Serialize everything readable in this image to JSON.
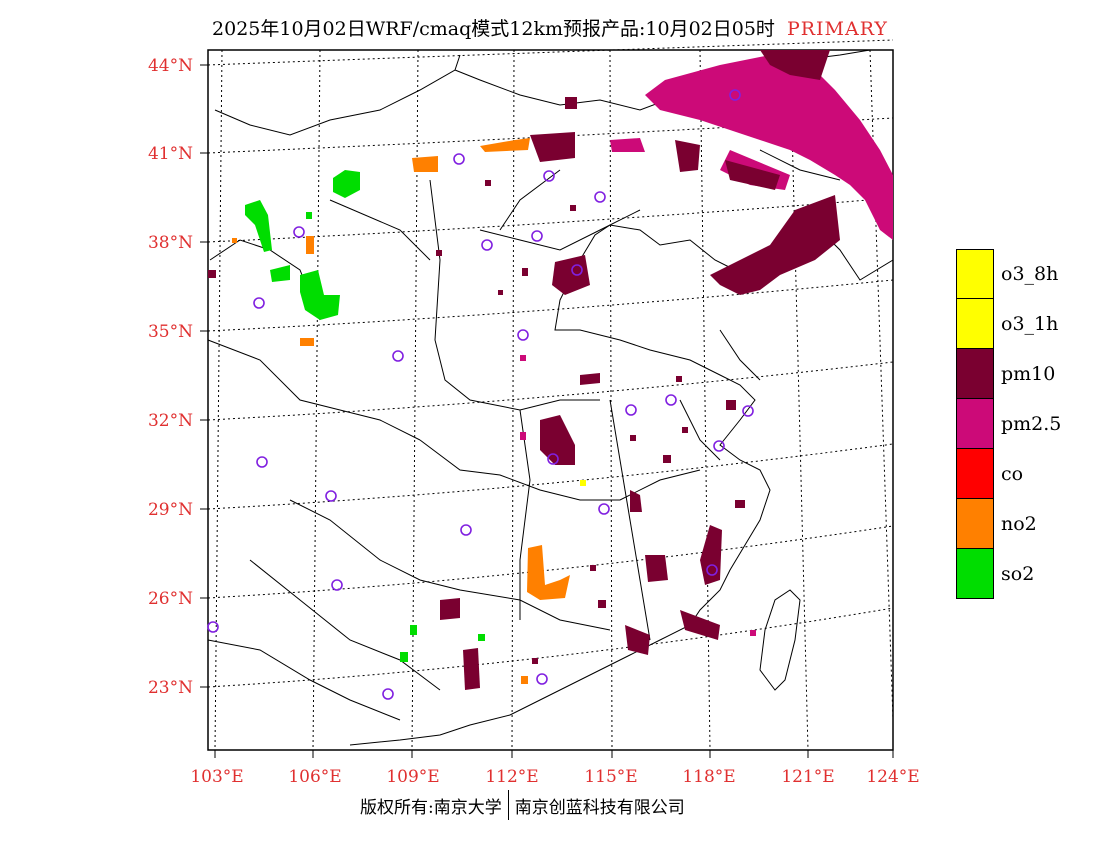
{
  "title": {
    "main": "2025年10月02日WRF/cmaq模式12km预报产品:10月02日05时",
    "tag": "PRIMARY"
  },
  "axes": {
    "lat_labels": [
      "44°N",
      "41°N",
      "38°N",
      "35°N",
      "32°N",
      "29°N",
      "26°N",
      "23°N"
    ],
    "lon_labels": [
      "103°E",
      "106°E",
      "109°E",
      "112°E",
      "115°E",
      "118°E",
      "121°E",
      "124°E"
    ]
  },
  "legend": [
    {
      "label": "o3_8h",
      "color": "#ffff00"
    },
    {
      "label": "o3_1h",
      "color": "#ffff00"
    },
    {
      "label": "pm10",
      "color": "#7a0030"
    },
    {
      "label": "pm2.5",
      "color": "#cc0a78"
    },
    {
      "label": "co",
      "color": "#ff0000"
    },
    {
      "label": "no2",
      "color": "#ff8000"
    },
    {
      "label": "so2",
      "color": "#00dd00"
    }
  ],
  "footer": {
    "left": "版权所有:南京大学",
    "right": "南京创蓝科技有限公司"
  }
}
